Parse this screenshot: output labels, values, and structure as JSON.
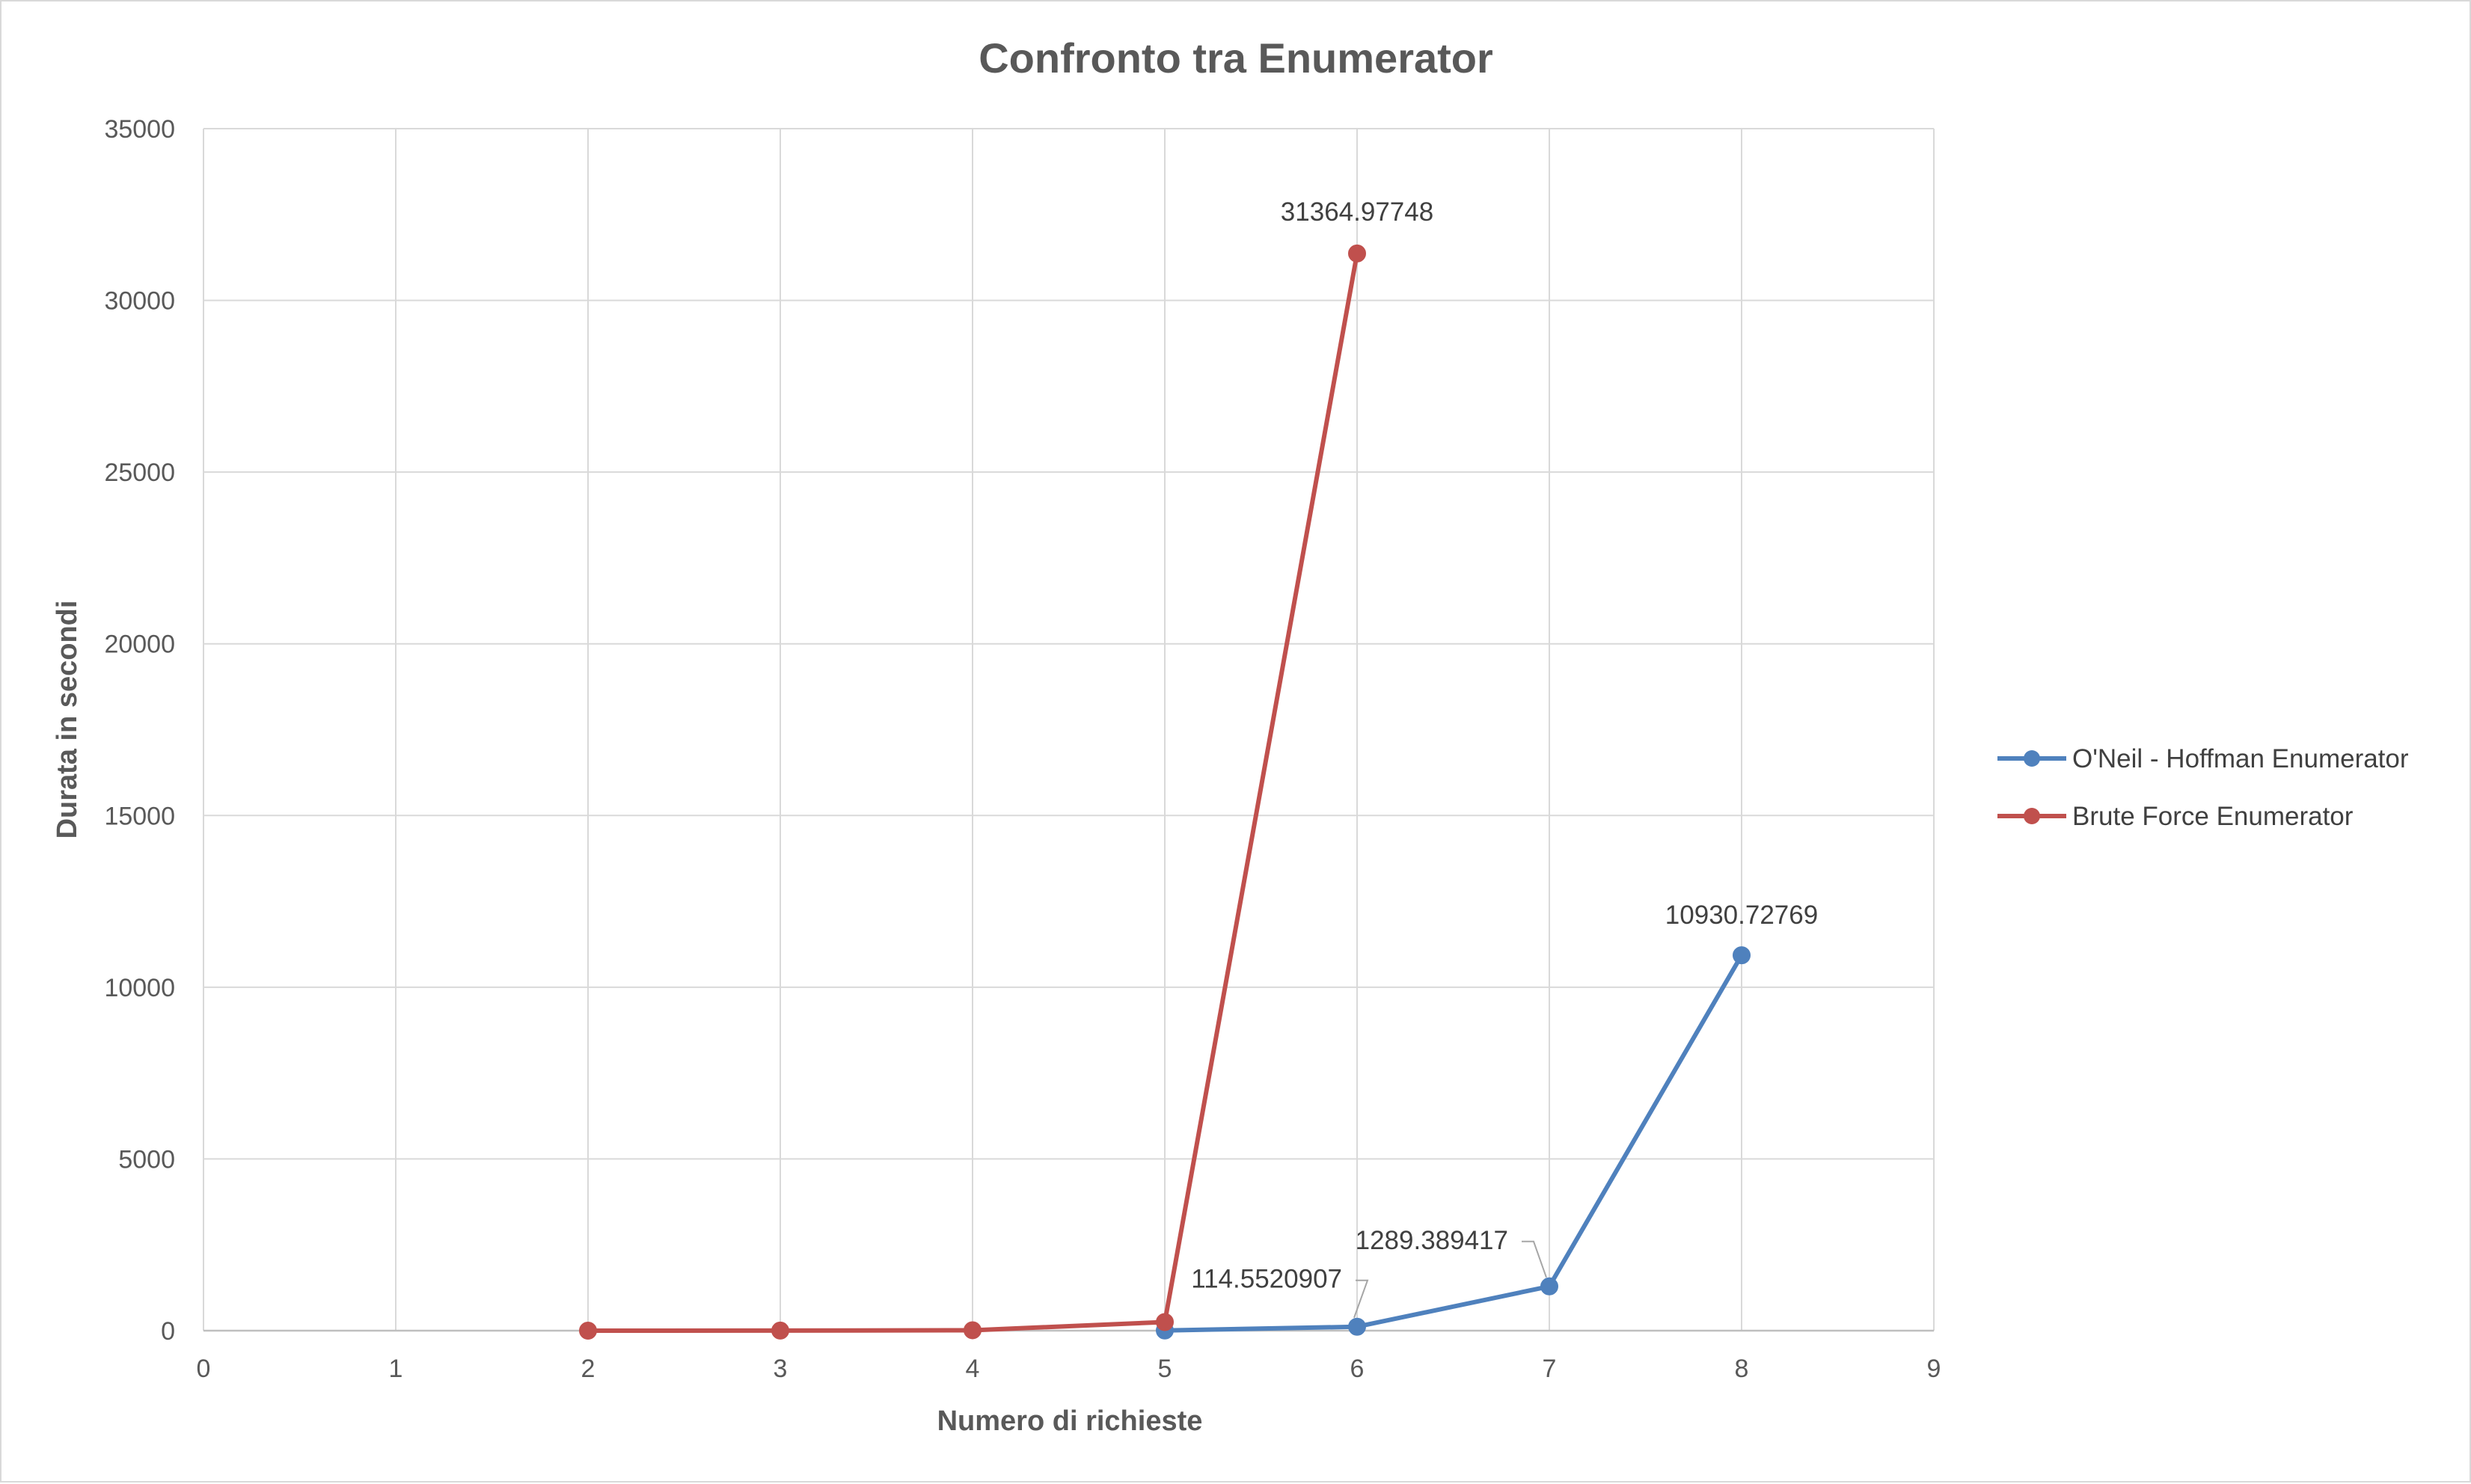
{
  "chart_data": {
    "type": "scatter",
    "title": "Confronto tra Enumerator",
    "xlabel": "Numero di richieste",
    "ylabel": "Durata in secondi",
    "xlim": [
      0,
      9
    ],
    "ylim": [
      0,
      35000
    ],
    "x_ticks": [
      "0",
      "1",
      "2",
      "3",
      "4",
      "5",
      "6",
      "7",
      "8",
      "9"
    ],
    "y_ticks": [
      "0",
      "5000",
      "10000",
      "15000",
      "20000",
      "25000",
      "30000",
      "35000"
    ],
    "grid": true,
    "legend_position": "right",
    "series": [
      {
        "name": "O'Neil - Hoffman Enumerator",
        "color": "#4f81bd",
        "x": [
          5,
          6,
          7,
          8
        ],
        "y": [
          5,
          114.5520907,
          1289.389417,
          10930.72769
        ],
        "labels": [
          "",
          "114.5520907",
          "1289.389417",
          "10930.72769"
        ]
      },
      {
        "name": "Brute Force Enumerator",
        "color": "#c0504d",
        "x": [
          2,
          3,
          4,
          5,
          6
        ],
        "y": [
          0.5,
          1.5,
          12,
          250,
          31364.97748
        ],
        "labels": [
          "",
          "",
          "",
          "",
          "31364.97748"
        ]
      }
    ]
  }
}
